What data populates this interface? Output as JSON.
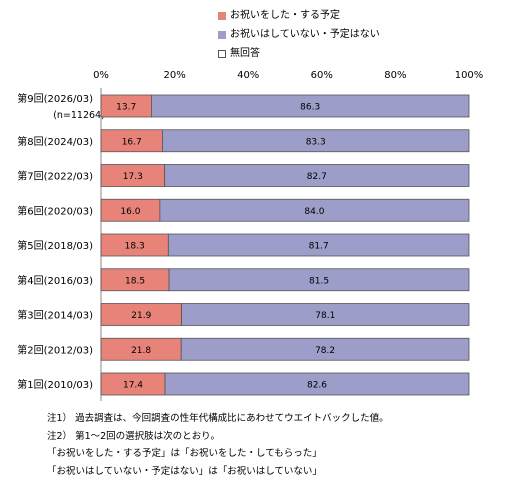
{
  "chart_data": {
    "type": "bar",
    "orientation": "horizontal",
    "stacked": true,
    "percent": true,
    "xlim": [
      0,
      100
    ],
    "x_ticks": [
      "0%",
      "20%",
      "40%",
      "60%",
      "80%",
      "100%"
    ],
    "categories": [
      "第9回(2026/03)",
      "第8回(2024/03)",
      "第7回(2022/03)",
      "第6回(2020/03)",
      "第5回(2018/03)",
      "第4回(2016/03)",
      "第3回(2014/03)",
      "第2回(2012/03)",
      "第1回(2010/03)"
    ],
    "category_note": {
      "index": 0,
      "text": "(n=11264)"
    },
    "series": [
      {
        "name": "お祝いをした・する予定",
        "color": "#e8837a",
        "values": [
          13.7,
          16.7,
          17.3,
          16.0,
          18.3,
          18.5,
          21.9,
          21.8,
          17.4
        ]
      },
      {
        "name": "お祝いはしていない・予定はない",
        "color": "#9c9dc8",
        "values": [
          86.3,
          83.3,
          82.7,
          84.0,
          81.7,
          81.5,
          78.1,
          78.2,
          82.6
        ]
      },
      {
        "name": "無回答",
        "color": "#ffffff",
        "values": [
          0,
          0,
          0,
          0,
          0,
          0,
          0,
          0,
          0
        ]
      }
    ],
    "grid": false,
    "legend_position": "top-center",
    "notes": [
      "注1） 過去調査は、今回調査の性年代構成比にあわせてウエイトバックした値。",
      "注2） 第1～2回の選択肢は次のとおり。",
      "「お祝いをした・する予定」は「お祝いをした・してもらった」",
      "「お祝いはしていない・予定はない」は「お祝いはしていない」"
    ]
  }
}
